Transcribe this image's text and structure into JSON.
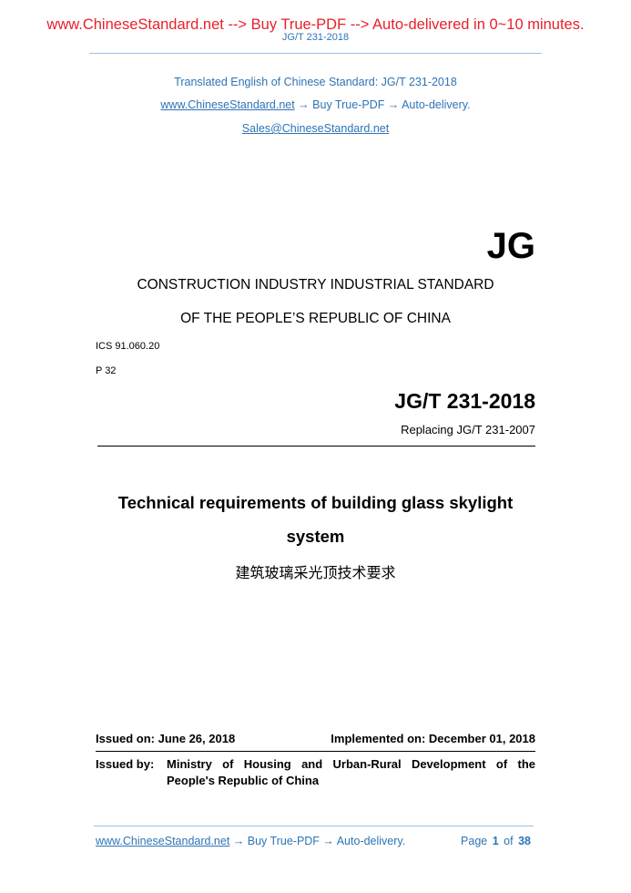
{
  "banner": "www.ChineseStandard.net --> Buy True-PDF --> Auto-delivered in 0~10 minutes.",
  "running_header": "JG/T 231-2018",
  "intro": {
    "translated": "Translated English of Chinese Standard: JG/T 231-2018",
    "link": "www.ChineseStandard.net",
    "link_suffix": " → Buy True-PDF → Auto-delivery.",
    "email": "Sales@ChineseStandard.net"
  },
  "logo": "JG",
  "org_line1": "CONSTRUCTION INDUSTRY INDUSTRIAL STANDARD",
  "org_line2": "OF THE PEOPLE’S REPUBLIC OF CHINA",
  "ics": "ICS 91.060.20",
  "p_code": "P 32",
  "standard_no": "JG/T  231-2018",
  "replacing": "Replacing  JG/T  231-2007",
  "title_line1": "Technical requirements of building glass skylight",
  "title_line2": "system",
  "title_cn": "建筑玻璃采光顶技术要求",
  "issued_on": "Issued on: June 26, 2018",
  "implemented_on": "Implemented on: December 01, 2018",
  "issued_by_label": "Issued by:",
  "issued_by_line1": "Ministry of Housing and Urban-Rural Development of the",
  "issued_by_line2": "People's Republic of China",
  "footer": {
    "link": "www.ChineseStandard.net",
    "link_suffix": " → Buy True-PDF → Auto-delivery.",
    "page_label": "Page",
    "page": "1",
    "of_label": "of",
    "total": "38"
  },
  "colors": {
    "banner": "#e8202a",
    "accent": "#2e74b5"
  }
}
